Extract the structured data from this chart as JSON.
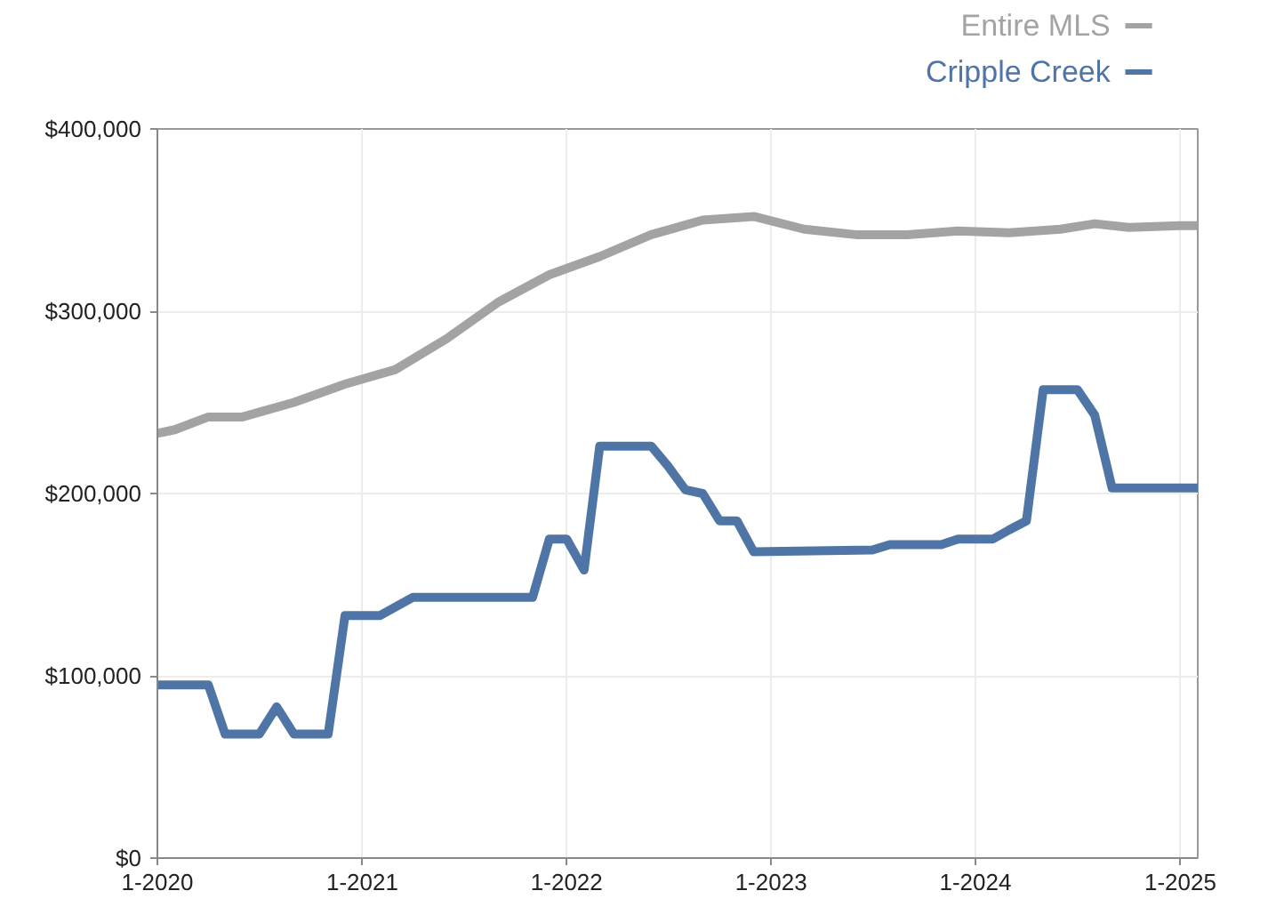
{
  "chart_data": {
    "type": "line",
    "ylim": [
      0,
      400000
    ],
    "yticks": [
      {
        "value": 0,
        "label": "$0"
      },
      {
        "value": 100000,
        "label": "$100,000"
      },
      {
        "value": 200000,
        "label": "$200,000"
      },
      {
        "value": 300000,
        "label": "$300,000"
      },
      {
        "value": 400000,
        "label": "$400,000"
      }
    ],
    "xlim": [
      "2020-01",
      "2025-02"
    ],
    "xticks": [
      {
        "value": "2020-01",
        "label": "1-2020"
      },
      {
        "value": "2021-01",
        "label": "1-2021"
      },
      {
        "value": "2022-01",
        "label": "1-2022"
      },
      {
        "value": "2023-01",
        "label": "1-2023"
      },
      {
        "value": "2024-01",
        "label": "1-2024"
      },
      {
        "value": "2025-01",
        "label": "1-2025"
      }
    ],
    "grid": true,
    "legend": "top right",
    "marker": "none",
    "line_style": "solid",
    "series": [
      {
        "name": "Entire MLS",
        "color": "#a3a3a3",
        "x": [
          "2020-01",
          "2020-02",
          "2020-04",
          "2020-06",
          "2020-09",
          "2020-12",
          "2021-03",
          "2021-06",
          "2021-09",
          "2021-12",
          "2022-03",
          "2022-06",
          "2022-09",
          "2022-12",
          "2023-03",
          "2023-06",
          "2023-09",
          "2023-12",
          "2024-03",
          "2024-06",
          "2024-08",
          "2024-10",
          "2025-01",
          "2025-02"
        ],
        "values": [
          233000,
          235000,
          242000,
          242000,
          250000,
          260000,
          268000,
          285000,
          305000,
          320000,
          330000,
          342000,
          350000,
          352000,
          345000,
          342000,
          342000,
          344000,
          343000,
          345000,
          348000,
          346000,
          347000,
          347000
        ]
      },
      {
        "name": "Cripple Creek",
        "color": "#4f75a6",
        "x": [
          "2020-01",
          "2020-04",
          "2020-05",
          "2020-07",
          "2020-08",
          "2020-09",
          "2020-11",
          "2020-12",
          "2021-02",
          "2021-04",
          "2021-11",
          "2021-12",
          "2022-01",
          "2022-02",
          "2022-03",
          "2022-06",
          "2022-07",
          "2022-08",
          "2022-09",
          "2022-10",
          "2022-11",
          "2022-12",
          "2023-07",
          "2023-08",
          "2023-11",
          "2023-12",
          "2024-02",
          "2024-03",
          "2024-04",
          "2024-05",
          "2024-07",
          "2024-08",
          "2024-09",
          "2025-02"
        ],
        "values": [
          95000,
          95000,
          68000,
          68000,
          83000,
          68000,
          68000,
          133000,
          133000,
          143000,
          143000,
          175000,
          175000,
          158000,
          226000,
          226000,
          215000,
          202000,
          200000,
          185000,
          185000,
          168000,
          169000,
          172000,
          172000,
          175000,
          175000,
          180000,
          185000,
          257000,
          257000,
          243000,
          203000,
          203000
        ]
      }
    ]
  }
}
